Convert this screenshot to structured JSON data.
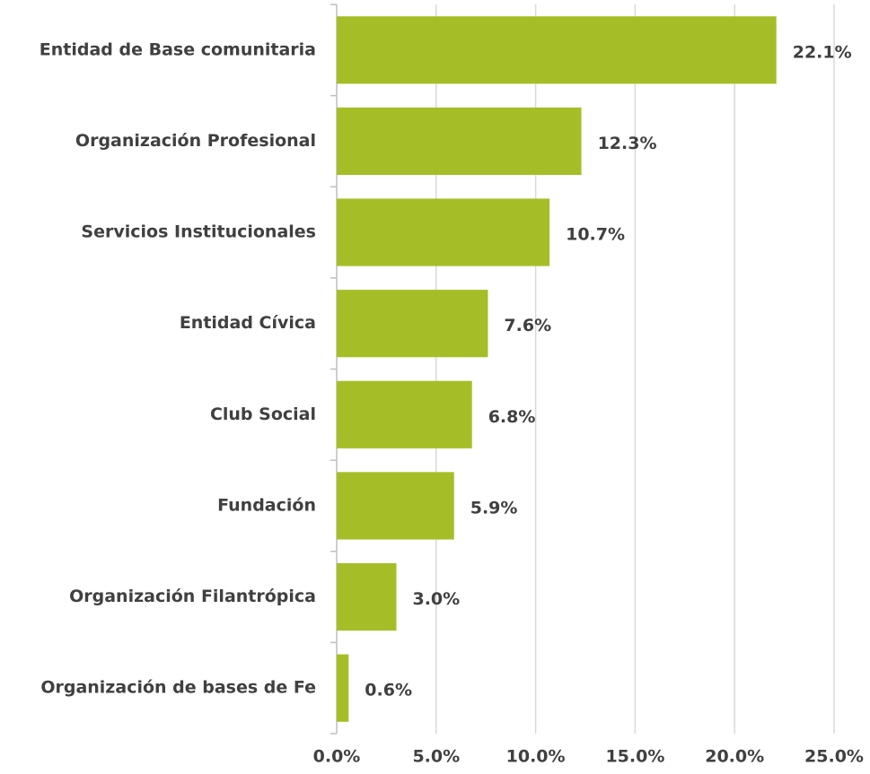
{
  "chart_data": {
    "type": "bar",
    "orientation": "horizontal",
    "categories": [
      "Entidad de Base comunitaria",
      "Organización Profesional",
      "Servicios Institucionales",
      "Entidad Cívica",
      "Club Social",
      "Fundación",
      "Organización Filantrópica",
      "Organización de bases de Fe"
    ],
    "values": [
      22.1,
      12.3,
      10.7,
      7.6,
      6.8,
      5.9,
      3.0,
      0.6
    ],
    "value_labels": [
      "22.1%",
      "12.3%",
      "10.7%",
      "7.6%",
      "6.8%",
      "5.9%",
      "3.0%",
      "0.6%"
    ],
    "color": "#a5be27",
    "xlim": [
      0,
      25
    ],
    "xticks": [
      {
        "value": 0,
        "label": "0.0%"
      },
      {
        "value": 5,
        "label": "5.0%"
      },
      {
        "value": 10,
        "label": "10.0%"
      },
      {
        "value": 15,
        "label": "15.0%"
      },
      {
        "value": 20,
        "label": "20.0%"
      },
      {
        "value": 25,
        "label": "25.0%"
      }
    ],
    "grid": true
  }
}
